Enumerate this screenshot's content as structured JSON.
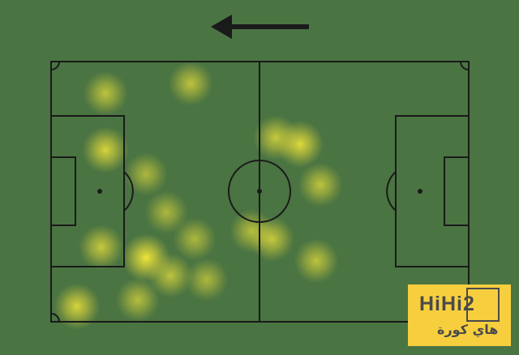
{
  "attack_direction": "left",
  "colors": {
    "pitch": "#4a7442",
    "lines": "#1a1a1a",
    "heat": "#f5e63a"
  },
  "pitch_units": {
    "length_m": 105,
    "width_m": 68
  },
  "heat_points": [
    {
      "x": 13.7,
      "y": 8.3,
      "w": 0.7
    },
    {
      "x": 35.1,
      "y": 5.7,
      "w": 0.7
    },
    {
      "x": 13.7,
      "y": 23.1,
      "w": 0.85
    },
    {
      "x": 23.9,
      "y": 29.4,
      "w": 0.6
    },
    {
      "x": 29.0,
      "y": 39.4,
      "w": 0.6
    },
    {
      "x": 36.1,
      "y": 46.4,
      "w": 0.6
    },
    {
      "x": 12.6,
      "y": 48.5,
      "w": 0.75
    },
    {
      "x": 23.9,
      "y": 51.3,
      "w": 1.0
    },
    {
      "x": 30.0,
      "y": 55.9,
      "w": 0.7
    },
    {
      "x": 39.1,
      "y": 57.0,
      "w": 0.6
    },
    {
      "x": 6.5,
      "y": 64.0,
      "w": 0.85
    },
    {
      "x": 21.8,
      "y": 62.3,
      "w": 0.65
    },
    {
      "x": 56.5,
      "y": 19.9,
      "w": 0.75
    },
    {
      "x": 62.6,
      "y": 21.6,
      "w": 0.9
    },
    {
      "x": 67.7,
      "y": 32.2,
      "w": 0.7
    },
    {
      "x": 50.4,
      "y": 44.3,
      "w": 0.65
    },
    {
      "x": 55.5,
      "y": 46.4,
      "w": 0.75
    },
    {
      "x": 66.7,
      "y": 52.1,
      "w": 0.7
    }
  ],
  "logo": {
    "latin": "HiHi2",
    "arabic": "هاي كورة"
  }
}
